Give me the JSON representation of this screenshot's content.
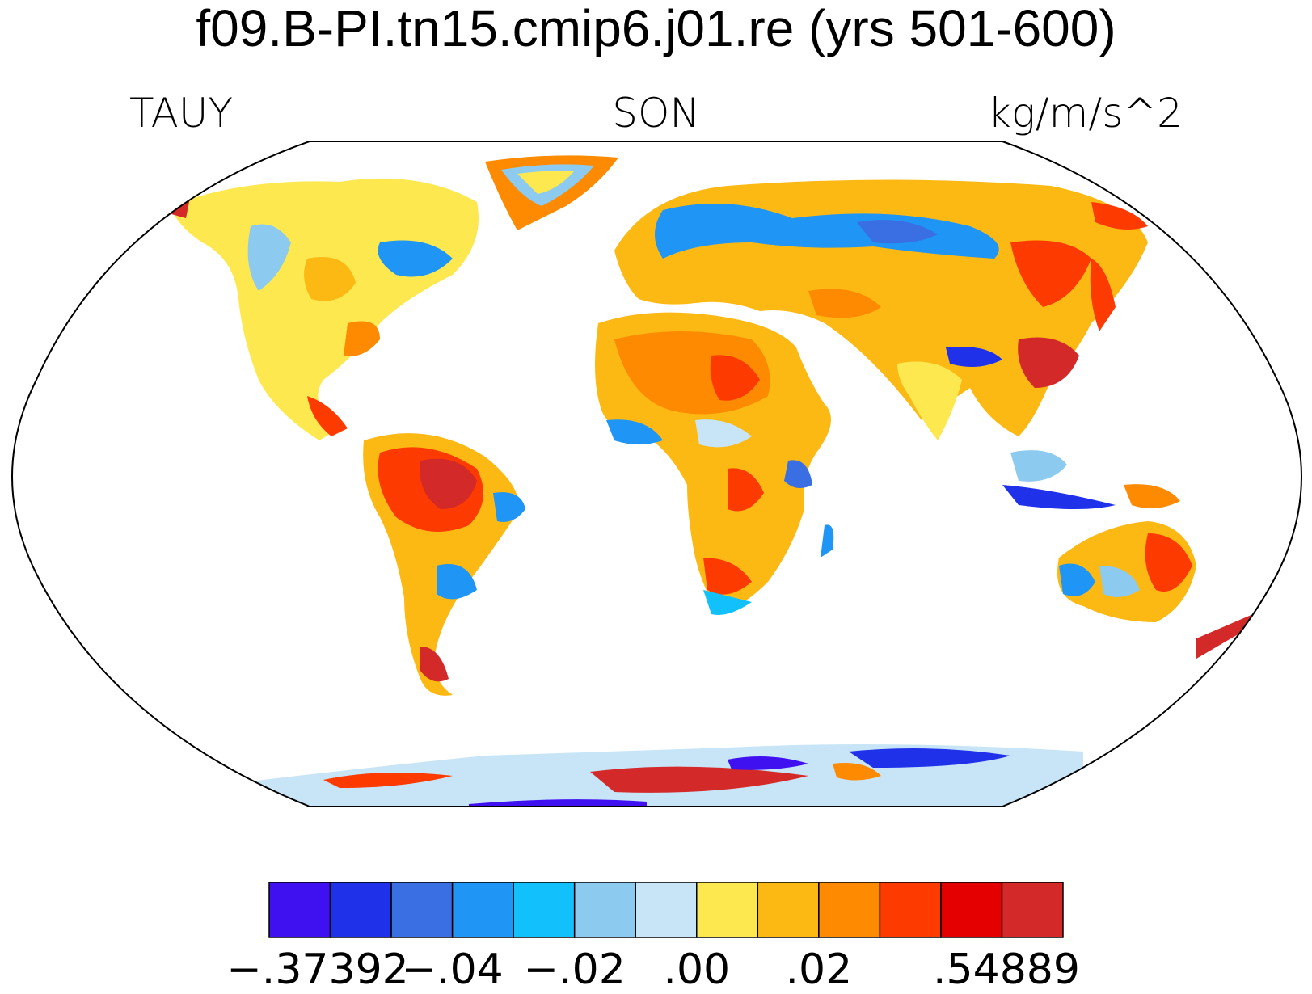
{
  "title": "f09.B-PI.tn15.cmip6.j01.re (yrs 501-600)",
  "left_label": "TAUY",
  "center_label": "SON",
  "right_label": "kg/m/s^2",
  "colorbar": {
    "colors": [
      "#3f10f0",
      "#1f32ea",
      "#3a6fe3",
      "#1f95f5",
      "#12c1fb",
      "#8ccaef",
      "#c7e5f7",
      "#fde84f",
      "#fdb913",
      "#fd8a00",
      "#fd3b00",
      "#e50000",
      "#d42929"
    ],
    "labels": [
      {
        "text": "−.37392",
        "boundary": 0
      },
      {
        "text": "−.04",
        "boundary": 3
      },
      {
        "text": "−.02",
        "boundary": 5
      },
      {
        "text": ".00",
        "boundary": 7
      },
      {
        "text": ".02",
        "boundary": 9
      },
      {
        "text": ".54889",
        "boundary": 13
      }
    ]
  }
}
